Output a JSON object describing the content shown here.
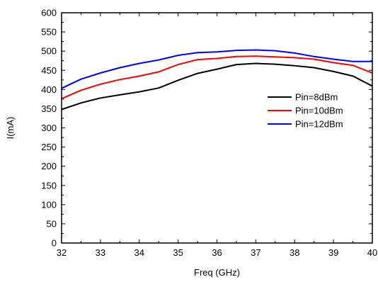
{
  "chart_data": {
    "type": "line",
    "title": "",
    "xlabel": "Freq (GHz)",
    "ylabel": "I(mA)",
    "xlim": [
      32,
      40
    ],
    "ylim": [
      0,
      600
    ],
    "xticks": [
      32,
      33,
      34,
      35,
      36,
      37,
      38,
      39,
      40
    ],
    "yticks": [
      0,
      50,
      100,
      150,
      200,
      250,
      300,
      350,
      400,
      450,
      500,
      550,
      600
    ],
    "grid": false,
    "legend_position": "right",
    "x": [
      32,
      32.5,
      33,
      33.5,
      34,
      34.5,
      35,
      35.5,
      36,
      36.5,
      37,
      37.5,
      38,
      38.5,
      39,
      39.5,
      40
    ],
    "series": [
      {
        "name": "Pin=8dBm",
        "color": "#000000",
        "values": [
          348,
          365,
          378,
          386,
          394,
          404,
          424,
          442,
          453,
          465,
          468,
          466,
          462,
          457,
          447,
          435,
          409
        ]
      },
      {
        "name": "Pin=10dBm",
        "color": "#ff0000",
        "values": [
          376,
          398,
          414,
          426,
          435,
          446,
          465,
          478,
          481,
          486,
          487,
          485,
          483,
          479,
          470,
          463,
          443
        ]
      },
      {
        "name": "Pin=12dBm",
        "color": "#0000ff",
        "values": [
          403,
          427,
          443,
          457,
          468,
          477,
          489,
          496,
          498,
          502,
          503,
          501,
          495,
          486,
          479,
          473,
          473
        ]
      }
    ]
  }
}
